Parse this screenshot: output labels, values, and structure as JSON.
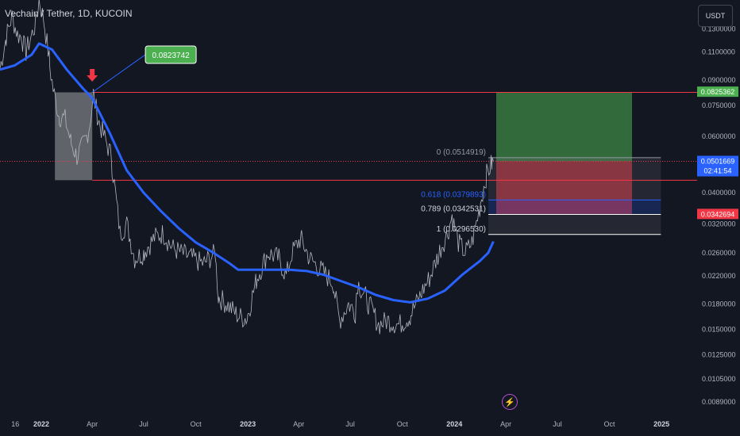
{
  "header": {
    "title": "Vechain / Tether, 1D, KUCOIN"
  },
  "currency_button": {
    "label": "USDT"
  },
  "colors": {
    "background": "#131722",
    "price": "#b2b5be",
    "ema": "#2962ff",
    "target": "#4caf50",
    "stop": "#f23645",
    "last": "#2962ff"
  },
  "icons": {
    "arrow": "down-arrow-icon",
    "alerts": "lightning-icon"
  },
  "chart_data": {
    "type": "line",
    "y_scale": "log",
    "ylim": [
      0.0085,
      0.16
    ],
    "xlim": [
      "2021-10-20",
      "2025-03-05"
    ],
    "price_axis_ticks": [
      "0.1300000",
      "0.1100000",
      "0.0900000",
      "0.0750000",
      "0.0600000",
      "0.0400000",
      "0.0320000",
      "0.0260000",
      "0.0220000",
      "0.0180000",
      "0.0150000",
      "0.0125000",
      "0.0105000",
      "0.0089000"
    ],
    "time_axis_ticks": [
      {
        "label": "16",
        "date": "2021-11-16",
        "bold": false
      },
      {
        "label": "2022",
        "date": "2022-01-01",
        "bold": true
      },
      {
        "label": "Apr",
        "date": "2022-04-01",
        "bold": false
      },
      {
        "label": "Jul",
        "date": "2022-07-01",
        "bold": false
      },
      {
        "label": "Oct",
        "date": "2022-10-01",
        "bold": false
      },
      {
        "label": "2023",
        "date": "2023-01-01",
        "bold": true
      },
      {
        "label": "Apr",
        "date": "2023-04-01",
        "bold": false
      },
      {
        "label": "Jul",
        "date": "2023-07-01",
        "bold": false
      },
      {
        "label": "Oct",
        "date": "2023-10-01",
        "bold": false
      },
      {
        "label": "2024",
        "date": "2024-01-01",
        "bold": true
      },
      {
        "label": "Apr",
        "date": "2024-04-01",
        "bold": false
      },
      {
        "label": "Jul",
        "date": "2024-07-01",
        "bold": false
      },
      {
        "label": "Oct",
        "date": "2024-10-01",
        "bold": false
      },
      {
        "label": "2025",
        "date": "2025-01-01",
        "bold": true
      }
    ],
    "series": [
      {
        "type": "price",
        "points": [
          [
            "2021-10-20",
            0.098
          ],
          [
            "2021-10-30",
            0.12
          ],
          [
            "2021-11-10",
            0.142
          ],
          [
            "2021-11-20",
            0.125
          ],
          [
            "2021-11-28",
            0.122
          ],
          [
            "2021-12-05",
            0.11
          ],
          [
            "2021-12-12",
            0.12
          ],
          [
            "2021-12-22",
            0.135
          ],
          [
            "2021-12-28",
            0.16
          ],
          [
            "2022-01-05",
            0.14
          ],
          [
            "2022-01-15",
            0.105
          ],
          [
            "2022-01-22",
            0.084
          ],
          [
            "2022-02-01",
            0.07
          ],
          [
            "2022-02-12",
            0.068
          ],
          [
            "2022-02-22",
            0.058
          ],
          [
            "2022-03-05",
            0.052
          ],
          [
            "2022-03-15",
            0.056
          ],
          [
            "2022-03-22",
            0.06
          ],
          [
            "2022-03-28",
            0.066
          ],
          [
            "2022-04-03",
            0.082
          ],
          [
            "2022-04-12",
            0.068
          ],
          [
            "2022-04-25",
            0.058
          ],
          [
            "2022-05-05",
            0.052
          ],
          [
            "2022-05-12",
            0.04
          ],
          [
            "2022-05-20",
            0.03
          ],
          [
            "2022-06-01",
            0.032
          ],
          [
            "2022-06-15",
            0.025
          ],
          [
            "2022-07-01",
            0.026
          ],
          [
            "2022-07-20",
            0.029
          ],
          [
            "2022-08-05",
            0.03
          ],
          [
            "2022-08-20",
            0.027
          ],
          [
            "2022-09-05",
            0.026
          ],
          [
            "2022-09-25",
            0.025
          ],
          [
            "2022-10-15",
            0.024
          ],
          [
            "2022-11-05",
            0.026
          ],
          [
            "2022-11-10",
            0.019
          ],
          [
            "2022-11-25",
            0.018
          ],
          [
            "2022-12-15",
            0.0165
          ],
          [
            "2022-12-31",
            0.0162
          ],
          [
            "2023-01-15",
            0.021
          ],
          [
            "2023-02-05",
            0.026
          ],
          [
            "2023-02-25",
            0.025
          ],
          [
            "2023-03-10",
            0.022
          ],
          [
            "2023-03-20",
            0.026
          ],
          [
            "2023-04-05",
            0.029
          ],
          [
            "2023-04-20",
            0.025
          ],
          [
            "2023-05-10",
            0.023
          ],
          [
            "2023-06-01",
            0.021
          ],
          [
            "2023-06-12",
            0.016
          ],
          [
            "2023-06-28",
            0.018
          ],
          [
            "2023-07-10",
            0.017
          ],
          [
            "2023-07-14",
            0.021
          ],
          [
            "2023-07-28",
            0.019
          ],
          [
            "2023-08-10",
            0.017
          ],
          [
            "2023-08-20",
            0.0155
          ],
          [
            "2023-09-05",
            0.016
          ],
          [
            "2023-09-25",
            0.0155
          ],
          [
            "2023-10-15",
            0.0165
          ],
          [
            "2023-11-01",
            0.019
          ],
          [
            "2023-11-20",
            0.022
          ],
          [
            "2023-12-05",
            0.026
          ],
          [
            "2023-12-20",
            0.03
          ],
          [
            "2023-12-28",
            0.034
          ],
          [
            "2024-01-08",
            0.028
          ],
          [
            "2024-01-20",
            0.026
          ],
          [
            "2024-02-01",
            0.028
          ],
          [
            "2024-02-15",
            0.036
          ],
          [
            "2024-02-26",
            0.045
          ],
          [
            "2024-03-06",
            0.049
          ],
          [
            "2024-03-10",
            0.0501669
          ]
        ]
      },
      {
        "type": "ema",
        "points": [
          [
            "2021-10-20",
            0.097
          ],
          [
            "2021-11-15",
            0.1
          ],
          [
            "2021-12-15",
            0.108
          ],
          [
            "2021-12-28",
            0.117
          ],
          [
            "2022-01-20",
            0.112
          ],
          [
            "2022-02-15",
            0.097
          ],
          [
            "2022-03-15",
            0.085
          ],
          [
            "2022-04-01",
            0.079
          ],
          [
            "2022-05-01",
            0.062
          ],
          [
            "2022-06-01",
            0.047
          ],
          [
            "2022-07-01",
            0.04
          ],
          [
            "2022-08-01",
            0.035
          ],
          [
            "2022-09-01",
            0.031
          ],
          [
            "2022-10-01",
            0.028
          ],
          [
            "2022-11-01",
            0.026
          ],
          [
            "2022-12-01",
            0.024
          ],
          [
            "2022-12-15",
            0.023
          ],
          [
            "2023-01-15",
            0.023
          ],
          [
            "2023-02-15",
            0.023
          ],
          [
            "2023-03-15",
            0.023
          ],
          [
            "2023-04-15",
            0.0228
          ],
          [
            "2023-05-15",
            0.0222
          ],
          [
            "2023-06-15",
            0.0212
          ],
          [
            "2023-07-15",
            0.0203
          ],
          [
            "2023-08-15",
            0.0192
          ],
          [
            "2023-09-15",
            0.0185
          ],
          [
            "2023-10-15",
            0.0182
          ],
          [
            "2023-11-15",
            0.0187
          ],
          [
            "2023-12-15",
            0.0198
          ],
          [
            "2024-01-15",
            0.0222
          ],
          [
            "2024-02-15",
            0.0245
          ],
          [
            "2024-03-01",
            0.026
          ],
          [
            "2024-03-10",
            0.0282
          ]
        ]
      }
    ],
    "annotations": {
      "callout": {
        "label": "0.0823742",
        "point_date": "2022-04-01",
        "point_value": 0.0823742,
        "box_date": "2022-08-15",
        "box_value": 0.108
      },
      "arrow": {
        "date": "2022-04-01",
        "value": 0.091
      },
      "resistance": {
        "value": 0.0823742,
        "from": "2022-04-01"
      },
      "support": {
        "value": 0.0438,
        "from": "2022-04-01"
      },
      "zone": {
        "from": "2022-01-25",
        "to": "2022-04-01",
        "top": 0.0823742,
        "bottom": 0.0438
      },
      "last_price_line": {
        "value": 0.0501669
      },
      "long_position": {
        "from": "2024-03-15",
        "to": "2024-11-10",
        "entry": 0.0501669,
        "target": 0.0825362,
        "stop": 0.0342694
      },
      "fib": {
        "from": "2024-03-01",
        "to": "2024-12-31",
        "levels": [
          {
            "ratio_label": "0 (0.0514919)",
            "value": 0.0514919,
            "color": "#9598a1"
          },
          {
            "ratio_label": "0.618 (0.0379893)",
            "value": 0.0379893,
            "color": "#2962ff"
          },
          {
            "ratio_label": "0.789 (0.0342531)",
            "value": 0.0342531,
            "color": "#ffffff"
          },
          {
            "ratio_label": "1 (0.0296530)",
            "value": 0.029653,
            "color": "#ffffff"
          }
        ]
      },
      "axis_labels": [
        {
          "text": "0.0825362",
          "value": 0.0825362,
          "bg": "#4caf50"
        },
        {
          "text": "0.0501669",
          "value": 0.0501669,
          "bg": "#2962ff",
          "sub": "02:41:54"
        },
        {
          "text": "0.0342694",
          "value": 0.0342694,
          "bg": "#f23645"
        }
      ]
    }
  }
}
